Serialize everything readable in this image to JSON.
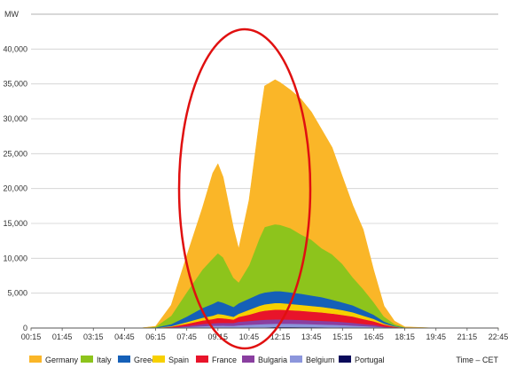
{
  "chart_data": {
    "type": "area",
    "stacked": true,
    "ylabel": "MW",
    "xlabel": "Time – CET",
    "ylim": [
      0,
      45000
    ],
    "grid": true,
    "legend_position": "bottom",
    "y_ticks": [
      "0",
      "5,000",
      "10,000",
      "15,000",
      "20,000",
      "25,000",
      "30,000",
      "35,000",
      "40,000"
    ],
    "x_ticks": [
      "00:15",
      "01:45",
      "03:15",
      "04:45",
      "06:15",
      "07:45",
      "09:15",
      "10:45",
      "12:15",
      "13:45",
      "15:15",
      "16:45",
      "18:15",
      "19:45",
      "21:15",
      "22:45"
    ],
    "x": [
      "00:15",
      "01:45",
      "03:15",
      "04:45",
      "05:30",
      "06:15",
      "07:00",
      "07:45",
      "08:30",
      "09:00",
      "09:15",
      "09:30",
      "10:00",
      "10:15",
      "10:45",
      "11:15",
      "11:30",
      "12:00",
      "12:15",
      "12:45",
      "13:15",
      "13:45",
      "14:15",
      "14:45",
      "15:15",
      "15:45",
      "16:15",
      "16:45",
      "17:15",
      "17:45",
      "18:15",
      "19:45",
      "21:15",
      "22:45"
    ],
    "series": [
      {
        "name": "Portugal",
        "color": "#0a0a5a",
        "values": [
          0,
          0,
          0,
          0,
          0,
          0,
          0,
          10,
          30,
          40,
          45,
          50,
          50,
          60,
          80,
          100,
          100,
          150,
          150,
          150,
          140,
          130,
          120,
          100,
          80,
          60,
          40,
          20,
          10,
          0,
          0,
          0,
          0,
          0
        ]
      },
      {
        "name": "Belgium",
        "color": "#8c96dc",
        "values": [
          0,
          0,
          0,
          0,
          0,
          10,
          50,
          150,
          250,
          300,
          300,
          300,
          280,
          350,
          400,
          450,
          480,
          480,
          480,
          470,
          460,
          430,
          400,
          380,
          350,
          300,
          250,
          200,
          100,
          50,
          10,
          0,
          0,
          0
        ]
      },
      {
        "name": "Bulgaria",
        "color": "#8a3fa0",
        "values": [
          0,
          0,
          0,
          0,
          0,
          10,
          50,
          150,
          300,
          350,
          400,
          400,
          400,
          500,
          550,
          600,
          620,
          620,
          620,
          600,
          580,
          550,
          520,
          500,
          450,
          400,
          300,
          250,
          100,
          50,
          10,
          0,
          0,
          0
        ]
      },
      {
        "name": "France",
        "color": "#e8142a",
        "values": [
          0,
          0,
          0,
          0,
          0,
          20,
          100,
          300,
          500,
          600,
          700,
          650,
          500,
          700,
          900,
          1200,
          1300,
          1400,
          1400,
          1350,
          1300,
          1250,
          1200,
          1100,
          1000,
          900,
          700,
          500,
          300,
          100,
          20,
          0,
          0,
          0
        ]
      },
      {
        "name": "Spain",
        "color": "#f7d000",
        "values": [
          0,
          0,
          0,
          0,
          0,
          10,
          80,
          250,
          400,
          500,
          600,
          550,
          400,
          450,
          700,
          850,
          900,
          950,
          950,
          900,
          850,
          820,
          800,
          750,
          700,
          600,
          500,
          350,
          150,
          50,
          10,
          0,
          0,
          0
        ]
      },
      {
        "name": "Greece",
        "color": "#1560b8",
        "values": [
          0,
          0,
          0,
          0,
          0,
          50,
          300,
          800,
          1400,
          1700,
          1800,
          1700,
          1400,
          1500,
          1600,
          1700,
          1700,
          1700,
          1700,
          1650,
          1600,
          1500,
          1400,
          1250,
          1100,
          1000,
          800,
          600,
          300,
          100,
          20,
          0,
          0,
          0
        ]
      },
      {
        "name": "Italy",
        "color": "#8dc41c",
        "values": [
          0,
          0,
          0,
          0,
          0,
          100,
          1200,
          3500,
          5500,
          6500,
          6900,
          6500,
          4200,
          3000,
          4800,
          8000,
          9400,
          9600,
          9500,
          9200,
          8500,
          8000,
          7000,
          6500,
          5500,
          4000,
          3000,
          1800,
          700,
          250,
          50,
          0,
          0,
          0
        ]
      },
      {
        "name": "Germany",
        "color": "#fab628",
        "values": [
          0,
          0,
          0,
          0,
          0,
          50,
          1500,
          5200,
          8800,
          12200,
          12800,
          11500,
          7100,
          4800,
          9300,
          16800,
          20200,
          20700,
          20400,
          19800,
          19400,
          18300,
          17000,
          15300,
          12500,
          10300,
          8500,
          4600,
          1500,
          400,
          50,
          0,
          0,
          0
        ]
      }
    ]
  },
  "legend_order": [
    "Germany",
    "Italy",
    "Greece",
    "Spain",
    "France",
    "Bulgaria",
    "Belgium",
    "Portugal"
  ],
  "annotation": {
    "shape": "ellipse",
    "color": "#e01010"
  }
}
